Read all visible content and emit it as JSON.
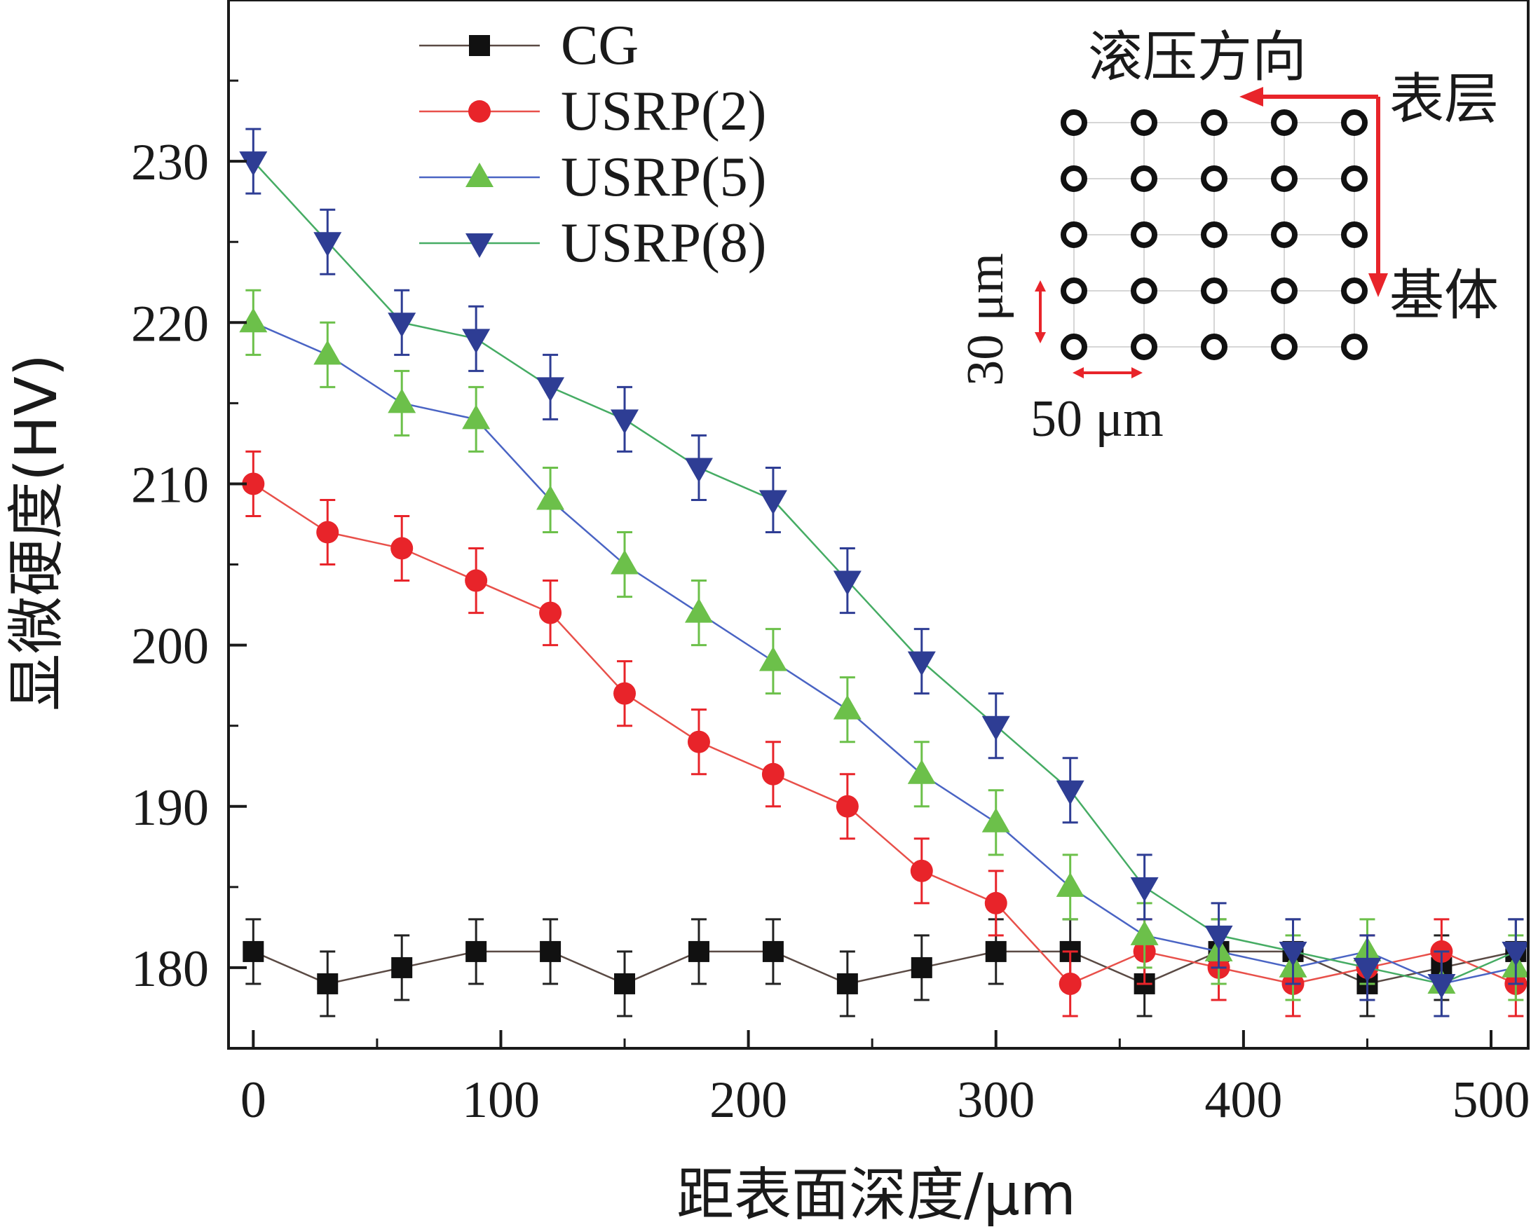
{
  "chart_data": {
    "type": "line",
    "title": "",
    "xlabel": "距表面深度/μm",
    "ylabel": "显微硬度(HV)",
    "xlim": [
      -10,
      515
    ],
    "ylim": [
      175,
      240
    ],
    "xticks": [
      0,
      100,
      200,
      300,
      400,
      500
    ],
    "yticks": [
      180,
      190,
      200,
      210,
      220,
      230
    ],
    "x": [
      0,
      30,
      60,
      90,
      120,
      150,
      180,
      210,
      240,
      270,
      300,
      330,
      360,
      390,
      420,
      450,
      480,
      510
    ],
    "error_bar": 2,
    "legend_position": "top-left",
    "series": [
      {
        "name": "CG",
        "marker": "square",
        "line_color": "#5a4a44",
        "marker_color": "#111111",
        "error_color": "#222222",
        "values": [
          181,
          179,
          180,
          181,
          181,
          179,
          181,
          181,
          179,
          180,
          181,
          181,
          179,
          181,
          181,
          179,
          180,
          181
        ]
      },
      {
        "name": "USRP(2)",
        "marker": "circle",
        "line_color": "#e8504a",
        "marker_color": "#e8242a",
        "error_color": "#e8242a",
        "values": [
          210,
          207,
          206,
          204,
          202,
          197,
          194,
          192,
          190,
          186,
          184,
          179,
          181,
          180,
          179,
          180,
          181,
          179
        ]
      },
      {
        "name": "USRP(5)",
        "marker": "triangle-up",
        "line_color": "#4a64c4",
        "marker_color": "#6cc04a",
        "error_color": "#6cc04a",
        "values": [
          220,
          218,
          215,
          214,
          209,
          205,
          202,
          199,
          196,
          192,
          189,
          185,
          182,
          181,
          180,
          181,
          179,
          180
        ]
      },
      {
        "name": "USRP(8)",
        "marker": "triangle-down",
        "line_color": "#46ac64",
        "marker_color": "#2e3d94",
        "error_color": "#2e3d94",
        "values": [
          230,
          225,
          220,
          219,
          216,
          214,
          211,
          209,
          204,
          199,
          195,
          191,
          185,
          182,
          181,
          180,
          179,
          181
        ]
      }
    ],
    "inset": {
      "title": "滚压方向",
      "surface_label": "表层",
      "matrix_label": "基体",
      "vertical_spacing_label": "30 μm",
      "horizontal_spacing_label": "50 μm",
      "grid_rows": 5,
      "grid_cols": 5,
      "arrow_color": "#e8242a"
    }
  }
}
